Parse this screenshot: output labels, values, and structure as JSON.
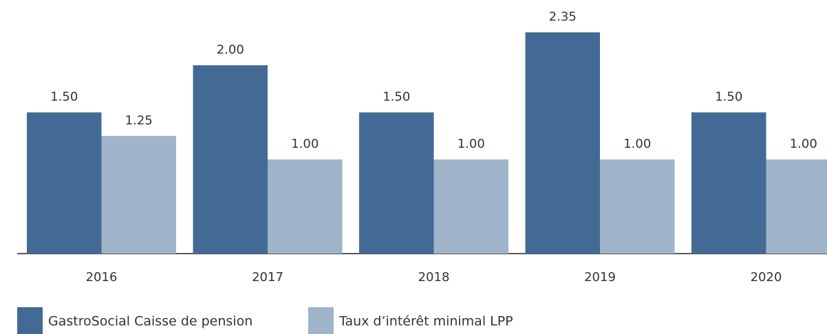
{
  "chart_data": {
    "type": "bar",
    "categories": [
      "2016",
      "2017",
      "2018",
      "2019",
      "2020"
    ],
    "series": [
      {
        "name": "GastroSocial Caisse de pension",
        "color": "#436a95",
        "values": [
          1.5,
          2.0,
          1.5,
          2.35,
          1.5
        ],
        "value_labels": [
          "1.50",
          "2.00",
          "1.50",
          "2.35",
          "1.50"
        ]
      },
      {
        "name": "Taux d’intérêt minimal LPP",
        "color": "#a0b4c9",
        "values": [
          1.25,
          1.0,
          1.0,
          1.0,
          1.0
        ],
        "value_labels": [
          "1.25",
          "1.00",
          "1.00",
          "1.00",
          "1.00"
        ]
      }
    ]
  }
}
